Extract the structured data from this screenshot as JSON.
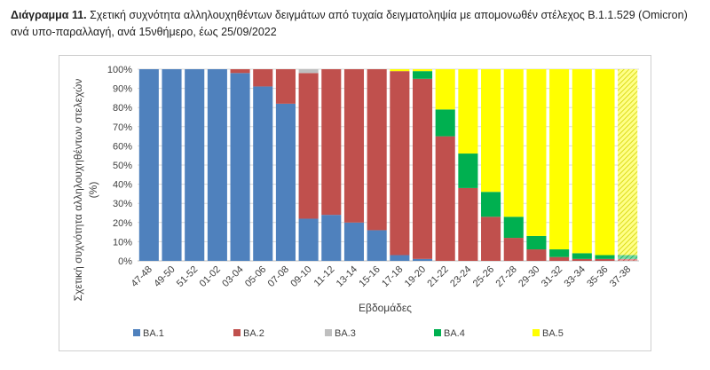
{
  "caption": {
    "bold": "Διάγραμμα 11.",
    "text": " Σχετική συχνότητα αλληλουχηθέντων δειγμάτων από τυχαία δειγματοληψία με απομονωθέν στέλεχος B.1.1.529 (Omicron) ανά υπο-παραλλαγή, ανά 15νθήμερο, έως 25/09/2022"
  },
  "chart_data": {
    "type": "bar",
    "stacked": true,
    "xlabel": "Εβδομάδες",
    "ylabel_line1": "Σχετική συχνότητα αλληλουχηθέντων στελεχών",
    "ylabel_line2": "(%)",
    "ylim": [
      0,
      100
    ],
    "yticks": [
      "0%",
      "10%",
      "20%",
      "30%",
      "40%",
      "50%",
      "60%",
      "70%",
      "80%",
      "90%",
      "100%"
    ],
    "categories": [
      "47-48",
      "49-50",
      "51-52",
      "01-02",
      "03-04",
      "05-06",
      "07-08",
      "09-10",
      "11-12",
      "13-14",
      "15-16",
      "17-18",
      "19-20",
      "21-22",
      "23-24",
      "25-26",
      "27-28",
      "29-30",
      "31-32",
      "33-34",
      "35-36",
      "37-38"
    ],
    "series": [
      {
        "name": "BA.1",
        "color": "#4f81bd",
        "values": [
          100,
          100,
          100,
          100,
          98,
          91,
          82,
          22,
          24,
          20,
          16,
          3,
          1,
          0,
          0,
          0,
          0,
          0,
          0,
          0,
          0,
          0
        ]
      },
      {
        "name": "BA.2",
        "color": "#c0504d",
        "values": [
          0,
          0,
          0,
          0,
          2,
          9,
          18,
          76,
          76,
          80,
          84,
          96,
          94,
          65,
          38,
          23,
          12,
          6,
          2,
          1,
          1,
          1
        ]
      },
      {
        "name": "BA.3",
        "color": "#bfbfbf",
        "values": [
          0,
          0,
          0,
          0,
          0,
          0,
          0,
          2,
          0,
          0,
          0,
          0,
          0,
          0,
          0,
          0,
          0,
          0,
          0,
          0,
          0,
          0
        ]
      },
      {
        "name": "BA.4",
        "color": "#00b050",
        "values": [
          0,
          0,
          0,
          0,
          0,
          0,
          0,
          0,
          0,
          0,
          0,
          0,
          4,
          14,
          18,
          13,
          11,
          7,
          4,
          3,
          2,
          2
        ]
      },
      {
        "name": "BA.5",
        "color": "#ffff00",
        "values": [
          0,
          0,
          0,
          0,
          0,
          0,
          0,
          0,
          0,
          0,
          0,
          1,
          1,
          21,
          44,
          64,
          77,
          87,
          94,
          96,
          97,
          97
        ]
      }
    ],
    "hatched_category": "37-38",
    "grid": true,
    "legend_position": "bottom"
  }
}
